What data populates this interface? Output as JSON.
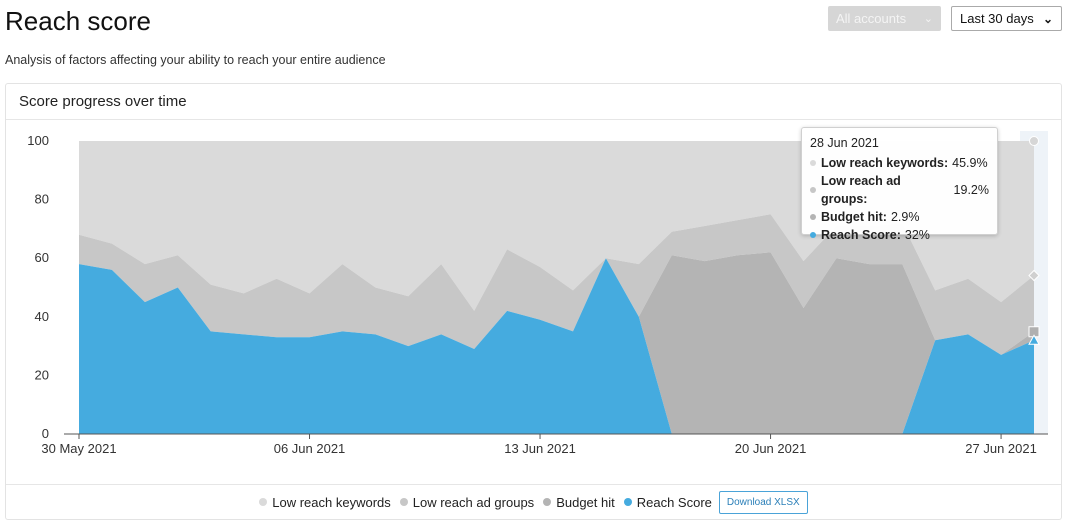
{
  "header": {
    "title": "Reach score",
    "subtitle": "Analysis of factors affecting your ability to reach your entire audience",
    "accounts_label": "All accounts",
    "range_label": "Last 30 days"
  },
  "card": {
    "title": "Score progress over time",
    "download_label": "Download XLSX"
  },
  "colors": {
    "low_reach_keywords": "#dadada",
    "low_reach_ad_groups": "#c7c7c7",
    "budget_hit": "#b4b4b4",
    "reach_score": "#45abdf"
  },
  "tooltip": {
    "date": "28 Jun 2021",
    "rows": [
      {
        "label": "Low reach keywords:",
        "value": "45.9%",
        "color": "#dadada"
      },
      {
        "label": "Low reach ad groups:",
        "value": "19.2%",
        "color": "#c7c7c7"
      },
      {
        "label": "Budget hit:",
        "value": "2.9%",
        "color": "#b4b4b4"
      },
      {
        "label": "Reach Score:",
        "value": "32%",
        "color": "#45abdf"
      }
    ]
  },
  "chart_data": {
    "type": "area",
    "stacked": true,
    "x": [
      "30 May 2021",
      "31 May 2021",
      "01 Jun 2021",
      "02 Jun 2021",
      "03 Jun 2021",
      "04 Jun 2021",
      "05 Jun 2021",
      "06 Jun 2021",
      "07 Jun 2021",
      "08 Jun 2021",
      "09 Jun 2021",
      "10 Jun 2021",
      "11 Jun 2021",
      "12 Jun 2021",
      "13 Jun 2021",
      "14 Jun 2021",
      "15 Jun 2021",
      "16 Jun 2021",
      "17 Jun 2021",
      "18 Jun 2021",
      "19 Jun 2021",
      "20 Jun 2021",
      "21 Jun 2021",
      "22 Jun 2021",
      "23 Jun 2021",
      "24 Jun 2021",
      "25 Jun 2021",
      "26 Jun 2021",
      "27 Jun 2021",
      "28 Jun 2021"
    ],
    "xticks": [
      "30 May 2021",
      "06 Jun 2021",
      "13 Jun 2021",
      "20 Jun 2021",
      "27 Jun 2021"
    ],
    "yticks": [
      0,
      20,
      40,
      60,
      80,
      100
    ],
    "ylim": [
      0,
      100
    ],
    "series": [
      {
        "name": "Reach Score",
        "values": [
          58,
          56,
          45,
          50,
          35,
          34,
          33,
          33,
          35,
          34,
          30,
          34,
          29,
          42,
          39,
          35,
          60,
          40,
          0,
          0,
          0,
          0,
          0,
          0,
          0,
          0,
          32,
          34,
          27,
          32
        ]
      },
      {
        "name": "Budget hit",
        "values": [
          0,
          0,
          0,
          0,
          0,
          0,
          0,
          0,
          0,
          0,
          0,
          0,
          0,
          0,
          0,
          0,
          0,
          0,
          61,
          59,
          61,
          62,
          43,
          60,
          58,
          58,
          0,
          0,
          0,
          2.9
        ]
      },
      {
        "name": "Low reach ad groups",
        "values": [
          10,
          9,
          13,
          11,
          16,
          14,
          20,
          15,
          23,
          16,
          17,
          24,
          13,
          21,
          18,
          14,
          0,
          18,
          8,
          12,
          12,
          13,
          16,
          11,
          13,
          14,
          17,
          19,
          18,
          19.2
        ]
      },
      {
        "name": "Low reach keywords",
        "values": [
          32,
          35,
          42,
          39,
          49,
          52,
          47,
          52,
          42,
          50,
          53,
          42,
          58,
          37,
          43,
          51,
          40,
          42,
          31,
          29,
          27,
          25,
          41,
          29,
          29,
          28,
          51,
          47,
          55,
          45.9
        ]
      }
    ],
    "legend": [
      "Low reach keywords",
      "Low reach ad groups",
      "Budget hit",
      "Reach Score"
    ],
    "legend_position": "bottom",
    "grid": false
  }
}
